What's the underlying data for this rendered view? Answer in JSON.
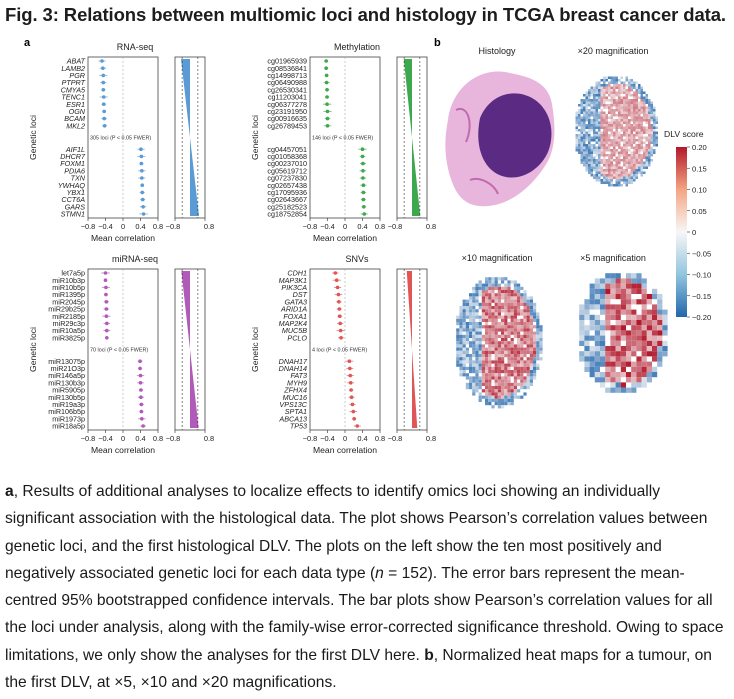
{
  "title": "Fig. 3: Relations between multiomic loci and histology in TCGA breast cancer data.",
  "panel_a_label": "a",
  "panel_b_label": "b",
  "axis_common": {
    "ylabel": "Genetic loci",
    "xlabel": "Mean correlation",
    "ticks": [
      "−0.8",
      "−0.4",
      "0",
      "0.4",
      "0.8"
    ],
    "bar_ticks": [
      "−0.8",
      "0.8"
    ]
  },
  "chart_data": [
    {
      "type": "scatter",
      "title": "RNA-seq",
      "color": "#5b9bd5",
      "italic": true,
      "threshold_label": "305 loci (P < 0.05 FWER)",
      "negative_loci": [
        "ABAT",
        "LAMB2",
        "PGR",
        "PTPRT",
        "CMYA5",
        "TENC1",
        "ESR1",
        "OGN",
        "BCAM",
        "MKL2"
      ],
      "negative_values": [
        -0.48,
        -0.46,
        -0.45,
        -0.45,
        -0.45,
        -0.44,
        -0.44,
        -0.43,
        -0.43,
        -0.42
      ],
      "positive_loci": [
        "AIF1L",
        "DHCR7",
        "FOXM1",
        "PDIA6",
        "TXN",
        "YWHAQ",
        "YBX1",
        "CCT6A",
        "GARS",
        "STMN1"
      ],
      "positive_values": [
        0.41,
        0.42,
        0.42,
        0.43,
        0.43,
        0.44,
        0.44,
        0.45,
        0.46,
        0.47
      ],
      "xlim": [
        -0.8,
        0.8
      ]
    },
    {
      "type": "scatter",
      "title": "Methylation",
      "color": "#3ea84e",
      "italic": false,
      "threshold_label": "146 loci (P < 0.05 FWER)",
      "negative_loci": [
        "cg01965939",
        "cg08536841",
        "cg14998713",
        "cg06490988",
        "cg26530341",
        "cg11203041",
        "cg06377278",
        "cg23191950",
        "cg00916635",
        "cg26789453"
      ],
      "negative_values": [
        -0.43,
        -0.43,
        -0.42,
        -0.42,
        -0.41,
        -0.41,
        -0.41,
        -0.4,
        -0.4,
        -0.4
      ],
      "positive_loci": [
        "cg04457051",
        "cg01058368",
        "cg00237010",
        "cg05619712",
        "cg07237830",
        "cg02657438",
        "cg17095936",
        "cg02643667",
        "cg25182523",
        "cg18752854"
      ],
      "positive_values": [
        0.4,
        0.4,
        0.41,
        0.41,
        0.41,
        0.42,
        0.42,
        0.42,
        0.43,
        0.44
      ],
      "xlim": [
        -0.8,
        0.8
      ]
    },
    {
      "type": "scatter",
      "title": "miRNA-seq",
      "color": "#b05bb8",
      "italic": false,
      "threshold_label": "70 loci (P < 0.05 FWER)",
      "negative_loci": [
        "let7a5p",
        "miR10b3p",
        "miR10b5p",
        "miR1395p",
        "miR2045p",
        "miR29b25p",
        "miR2185p",
        "miR29c3p",
        "miR10a5p",
        "miR3825p"
      ],
      "negative_values": [
        -0.4,
        -0.4,
        -0.39,
        -0.39,
        -0.38,
        -0.38,
        -0.38,
        -0.37,
        -0.37,
        -0.37
      ],
      "positive_loci": [
        "miR13075p",
        "miR21O3p",
        "miR146a5p",
        "miR130b3p",
        "miR5905p",
        "miR130b5p",
        "miR19a3p",
        "miR106b5p",
        "miR1973p",
        "miR18a5p"
      ],
      "positive_values": [
        0.39,
        0.39,
        0.4,
        0.4,
        0.41,
        0.41,
        0.42,
        0.42,
        0.43,
        0.46
      ],
      "xlim": [
        -0.8,
        0.8
      ]
    },
    {
      "type": "scatter",
      "title": "SNVs",
      "color": "#e05555",
      "italic": true,
      "threshold_label": "4 loci (P < 0.05 FWER)",
      "negative_loci": [
        "CDH1",
        "MAP3K1",
        "PIK3CA",
        "DST",
        "GATA3",
        "ARID1A",
        "FOXA1",
        "MAP2K4",
        "MUC5B",
        "PCLO"
      ],
      "negative_values": [
        -0.22,
        -0.19,
        -0.17,
        -0.15,
        -0.14,
        -0.13,
        -0.12,
        -0.11,
        -0.1,
        -0.09
      ],
      "positive_loci": [
        "DNAH17",
        "DNAH14",
        "FAT3",
        "MYH9",
        "ZFHX4",
        "MUC16",
        "VPS13C",
        "SPTA1",
        "ABCA13",
        "TP53"
      ],
      "positive_values": [
        0.1,
        0.11,
        0.12,
        0.13,
        0.14,
        0.15,
        0.17,
        0.19,
        0.21,
        0.28
      ],
      "xlim": [
        -0.8,
        0.8
      ]
    }
  ],
  "panel_b": {
    "histology_label": "Histology",
    "mag20_label": "×20 magnification",
    "mag10_label": "×10 magnification",
    "mag5_label": "×5 magnification",
    "colorbar_title": "DLV score",
    "colorbar_ticks": [
      "0.20",
      "0.15",
      "0.10",
      "0.05",
      "0",
      "−0.05",
      "−0.10",
      "−0.15",
      "−0.20"
    ],
    "colorbar_colors": [
      "#b2182b",
      "#f4a582",
      "#f7f7f7",
      "#92c5de",
      "#2166ac"
    ]
  },
  "caption": {
    "a_label": "a",
    "a_text": ", Results of additional analyses to localize effects to identify omics loci showing an individually significant association with the histological data. The plot shows Pearson’s correlation values between genetic loci, and the first histological DLV. The plots on the left show the ten most positively and negatively associated genetic loci for each data type (",
    "n_label": "n",
    "n_value": " = 152). The error bars represent the mean-centred 95% bootstrapped confidence intervals. The bar plots show Pearson’s correlation values for all the loci under analysis, along with the family-wise error-corrected significance threshold. Owing to space limitations, we only show the analyses for the first DLV here. ",
    "b_label": "b",
    "b_text": ", Normalized heat maps for a tumour, on the first DLV, at ×5, ×10 and ×20 magnifications."
  }
}
